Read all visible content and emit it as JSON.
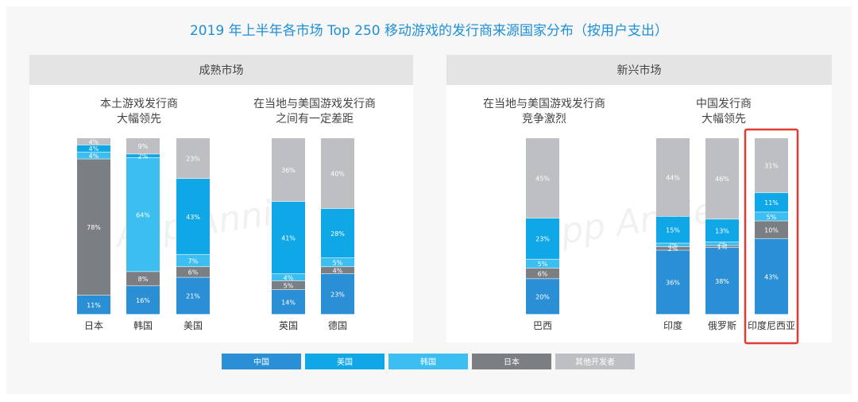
{
  "title": "2019 年上半年各市场 Top 250 移动游戏的发行商来源国家分布（按用户支出）",
  "watermark": "App Annie",
  "colors": {
    "中国": "#2a8fd4",
    "美国": "#10a7e6",
    "韩国": "#3cbff0",
    "日本": "#7b7f84",
    "其他开发者": "#bdbfc2",
    "highlight": "#e23b33",
    "header_bg": "#e4e4e4"
  },
  "chart_data": {
    "type": "bar",
    "stacked": true,
    "normalized": true,
    "unit": "%",
    "legend": {
      "position": "bottom",
      "entries": [
        "中国",
        "美国",
        "韩国",
        "日本",
        "其他开发者"
      ]
    },
    "panels": [
      {
        "header": "成熟市场",
        "groups": [
          {
            "subtitle": [
              "本土游戏发行商",
              "大幅领先"
            ],
            "bars": [
              {
                "category": "日本",
                "segments": [
                  {
                    "series": "中国",
                    "value": 11
                  },
                  {
                    "series": "日本",
                    "value": 78
                  },
                  {
                    "series": "韩国",
                    "value": 4
                  },
                  {
                    "series": "美国",
                    "value": 4
                  },
                  {
                    "series": "其他开发者",
                    "value": 4
                  }
                ]
              },
              {
                "category": "韩国",
                "segments": [
                  {
                    "series": "中国",
                    "value": 16
                  },
                  {
                    "series": "日本",
                    "value": 8
                  },
                  {
                    "series": "韩国",
                    "value": 64
                  },
                  {
                    "series": "美国",
                    "value": 2
                  },
                  {
                    "series": "其他开发者",
                    "value": 9
                  }
                ]
              },
              {
                "category": "美国",
                "segments": [
                  {
                    "series": "中国",
                    "value": 21
                  },
                  {
                    "series": "日本",
                    "value": 6
                  },
                  {
                    "series": "韩国",
                    "value": 7
                  },
                  {
                    "series": "美国",
                    "value": 43
                  },
                  {
                    "series": "其他开发者",
                    "value": 23
                  }
                ]
              }
            ]
          },
          {
            "subtitle": [
              "在当地与美国游戏发行商",
              "之间有一定差距"
            ],
            "bars": [
              {
                "category": "英国",
                "segments": [
                  {
                    "series": "中国",
                    "value": 14
                  },
                  {
                    "series": "日本",
                    "value": 5
                  },
                  {
                    "series": "韩国",
                    "value": 4
                  },
                  {
                    "series": "美国",
                    "value": 41
                  },
                  {
                    "series": "其他开发者",
                    "value": 36
                  }
                ]
              },
              {
                "category": "德国",
                "segments": [
                  {
                    "series": "中国",
                    "value": 23
                  },
                  {
                    "series": "日本",
                    "value": 4
                  },
                  {
                    "series": "韩国",
                    "value": 5
                  },
                  {
                    "series": "美国",
                    "value": 28
                  },
                  {
                    "series": "其他开发者",
                    "value": 40
                  }
                ]
              }
            ]
          }
        ]
      },
      {
        "header": "新兴市场",
        "groups": [
          {
            "subtitle": [
              "在当地与美国游戏发行商",
              "竞争激烈"
            ],
            "bars": [
              {
                "category": "巴西",
                "segments": [
                  {
                    "series": "中国",
                    "value": 20
                  },
                  {
                    "series": "日本",
                    "value": 6
                  },
                  {
                    "series": "韩国",
                    "value": 5
                  },
                  {
                    "series": "美国",
                    "value": 23
                  },
                  {
                    "series": "其他开发者",
                    "value": 45
                  }
                ]
              }
            ]
          },
          {
            "subtitle": [
              "中国发行商",
              "大幅领先"
            ],
            "bars": [
              {
                "category": "印度",
                "segments": [
                  {
                    "series": "中国",
                    "value": 36
                  },
                  {
                    "series": "日本",
                    "value": 2
                  },
                  {
                    "series": "韩国",
                    "value": 2
                  },
                  {
                    "series": "美国",
                    "value": 15
                  },
                  {
                    "series": "其他开发者",
                    "value": 44
                  }
                ]
              },
              {
                "category": "俄罗斯",
                "segments": [
                  {
                    "series": "中国",
                    "value": 38
                  },
                  {
                    "series": "日本",
                    "value": 1
                  },
                  {
                    "series": "韩国",
                    "value": 2
                  },
                  {
                    "series": "美国",
                    "value": 13
                  },
                  {
                    "series": "其他开发者",
                    "value": 46
                  }
                ]
              },
              {
                "category": "印度尼西亚",
                "highlighted": true,
                "segments": [
                  {
                    "series": "中国",
                    "value": 43
                  },
                  {
                    "series": "日本",
                    "value": 10
                  },
                  {
                    "series": "韩国",
                    "value": 5
                  },
                  {
                    "series": "美国",
                    "value": 11
                  },
                  {
                    "series": "其他开发者",
                    "value": 31
                  }
                ]
              }
            ]
          }
        ]
      }
    ]
  }
}
